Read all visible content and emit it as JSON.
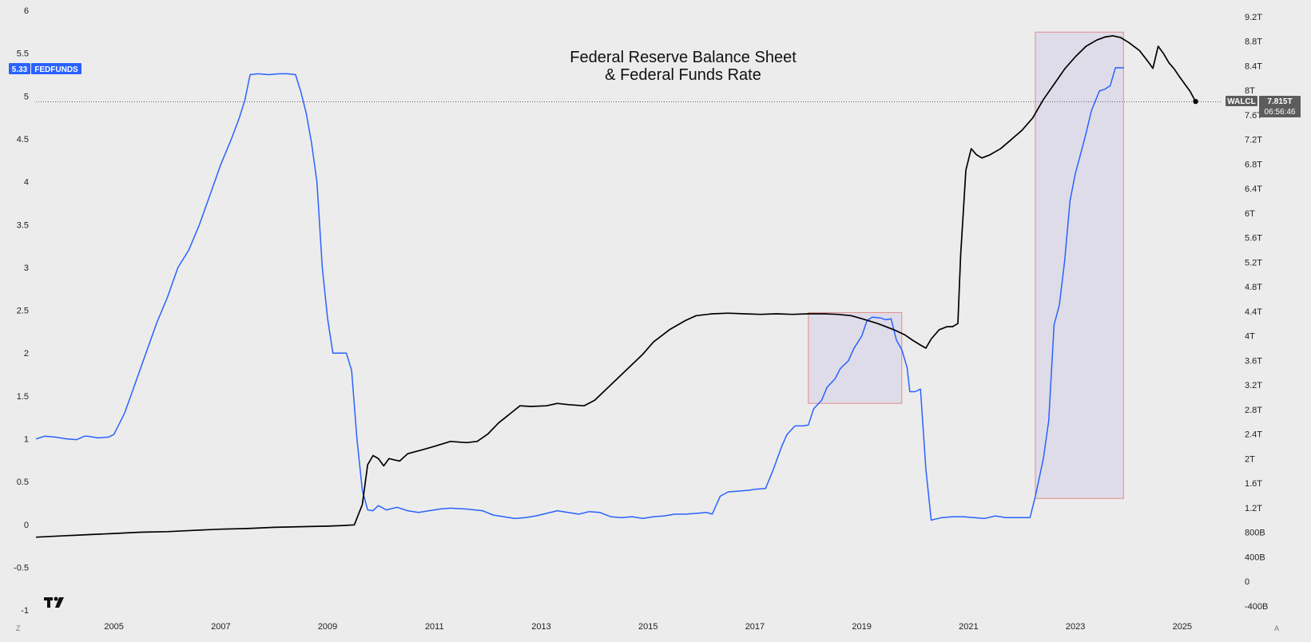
{
  "chart_data": {
    "type": "line",
    "title_line1": "Federal Reserve Balance Sheet",
    "title_line2": "& Federal Funds Rate",
    "x_ticks": [
      "2005",
      "2007",
      "2009",
      "2011",
      "2013",
      "2015",
      "2017",
      "2019",
      "2021",
      "2023",
      "2025"
    ],
    "x_range": [
      2003.54,
      2025.9
    ],
    "left_axis": {
      "ticks": [
        "6",
        "5.5",
        "5",
        "4.5",
        "4",
        "3.5",
        "3",
        "2.5",
        "2",
        "1.5",
        "1",
        "0.5",
        "0",
        "-0.5",
        "-1"
      ],
      "range": [
        -1,
        6
      ]
    },
    "right_axis": {
      "ticks": [
        "9.2T",
        "8.8T",
        "8.4T",
        "8T",
        "7.6T",
        "7.2T",
        "6.8T",
        "6.4T",
        "6T",
        "5.6T",
        "5.2T",
        "4.8T",
        "4.4T",
        "4T",
        "3.6T",
        "3.2T",
        "2.8T",
        "2.4T",
        "2T",
        "1.6T",
        "1.2T",
        "800B",
        "400B",
        "0",
        "-400B"
      ],
      "tick_values_T": [
        9.2,
        8.8,
        8.4,
        8.0,
        7.6,
        7.2,
        6.8,
        6.4,
        6.0,
        5.6,
        5.2,
        4.8,
        4.4,
        4.0,
        3.6,
        3.2,
        2.8,
        2.4,
        2.0,
        1.6,
        1.2,
        0.8,
        0.4,
        0,
        -0.4
      ],
      "range_T": [
        -0.4,
        9.2
      ]
    },
    "series": [
      {
        "name": "FEDFUNDS",
        "axis": "left",
        "color": "#2962ff",
        "last_value_label": "5.33",
        "points": [
          [
            2003.55,
            1.0
          ],
          [
            2003.7,
            1.03
          ],
          [
            2003.9,
            1.02
          ],
          [
            2004.1,
            1.0
          ],
          [
            2004.3,
            0.99
          ],
          [
            2004.45,
            1.03
          ],
          [
            2004.5,
            1.03
          ],
          [
            2004.7,
            1.01
          ],
          [
            2004.9,
            1.02
          ],
          [
            2005.0,
            1.05
          ],
          [
            2005.2,
            1.3
          ],
          [
            2005.4,
            1.65
          ],
          [
            2005.6,
            2.0
          ],
          [
            2005.8,
            2.35
          ],
          [
            2006.0,
            2.65
          ],
          [
            2006.2,
            3.0
          ],
          [
            2006.4,
            3.2
          ],
          [
            2006.6,
            3.5
          ],
          [
            2006.8,
            3.85
          ],
          [
            2007.0,
            4.2
          ],
          [
            2007.2,
            4.5
          ],
          [
            2007.35,
            4.75
          ],
          [
            2007.45,
            4.95
          ],
          [
            2007.55,
            5.25
          ],
          [
            2007.7,
            5.26
          ],
          [
            2007.9,
            5.25
          ],
          [
            2008.1,
            5.26
          ],
          [
            2008.25,
            5.26
          ],
          [
            2008.4,
            5.25
          ],
          [
            2008.5,
            5.05
          ],
          [
            2008.6,
            4.8
          ],
          [
            2008.7,
            4.45
          ],
          [
            2008.8,
            4.0
          ],
          [
            2008.9,
            3.0
          ],
          [
            2009.0,
            2.4
          ],
          [
            2009.1,
            2.0
          ],
          [
            2009.2,
            2.0
          ],
          [
            2009.35,
            2.0
          ],
          [
            2009.45,
            1.8
          ],
          [
            2009.55,
            1.0
          ],
          [
            2009.65,
            0.4
          ],
          [
            2009.75,
            0.17
          ],
          [
            2009.85,
            0.16
          ],
          [
            2009.95,
            0.22
          ],
          [
            2010.1,
            0.17
          ],
          [
            2010.3,
            0.2
          ],
          [
            2010.5,
            0.16
          ],
          [
            2010.7,
            0.14
          ],
          [
            2010.9,
            0.16
          ],
          [
            2011.1,
            0.18
          ],
          [
            2011.3,
            0.19
          ],
          [
            2011.6,
            0.18
          ],
          [
            2011.9,
            0.16
          ],
          [
            2012.1,
            0.11
          ],
          [
            2012.3,
            0.09
          ],
          [
            2012.5,
            0.07
          ],
          [
            2012.7,
            0.08
          ],
          [
            2012.9,
            0.1
          ],
          [
            2013.1,
            0.13
          ],
          [
            2013.3,
            0.16
          ],
          [
            2013.5,
            0.14
          ],
          [
            2013.7,
            0.12
          ],
          [
            2013.9,
            0.15
          ],
          [
            2014.1,
            0.14
          ],
          [
            2014.3,
            0.09
          ],
          [
            2014.5,
            0.08
          ],
          [
            2014.7,
            0.09
          ],
          [
            2014.9,
            0.07
          ],
          [
            2015.1,
            0.09
          ],
          [
            2015.3,
            0.1
          ],
          [
            2015.5,
            0.12
          ],
          [
            2015.7,
            0.12
          ],
          [
            2015.9,
            0.13
          ],
          [
            2016.1,
            0.14
          ],
          [
            2016.2,
            0.12
          ],
          [
            2016.35,
            0.33
          ],
          [
            2016.5,
            0.38
          ],
          [
            2016.7,
            0.39
          ],
          [
            2016.9,
            0.4
          ],
          [
            2017.0,
            0.41
          ],
          [
            2017.2,
            0.42
          ],
          [
            2017.35,
            0.65
          ],
          [
            2017.5,
            0.91
          ],
          [
            2017.6,
            1.05
          ],
          [
            2017.75,
            1.15
          ],
          [
            2017.9,
            1.15
          ],
          [
            2018.0,
            1.16
          ],
          [
            2018.1,
            1.35
          ],
          [
            2018.25,
            1.45
          ],
          [
            2018.35,
            1.6
          ],
          [
            2018.5,
            1.7
          ],
          [
            2018.6,
            1.82
          ],
          [
            2018.75,
            1.91
          ],
          [
            2018.85,
            2.05
          ],
          [
            2019.0,
            2.2
          ],
          [
            2019.1,
            2.38
          ],
          [
            2019.2,
            2.42
          ],
          [
            2019.35,
            2.41
          ],
          [
            2019.45,
            2.39
          ],
          [
            2019.55,
            2.4
          ],
          [
            2019.65,
            2.15
          ],
          [
            2019.75,
            2.04
          ],
          [
            2019.85,
            1.83
          ],
          [
            2019.9,
            1.55
          ],
          [
            2020.0,
            1.55
          ],
          [
            2020.1,
            1.58
          ],
          [
            2020.2,
            0.65
          ],
          [
            2020.3,
            0.05
          ],
          [
            2020.5,
            0.08
          ],
          [
            2020.7,
            0.09
          ],
          [
            2020.9,
            0.09
          ],
          [
            2021.1,
            0.08
          ],
          [
            2021.3,
            0.07
          ],
          [
            2021.5,
            0.1
          ],
          [
            2021.7,
            0.08
          ],
          [
            2021.9,
            0.08
          ],
          [
            2022.0,
            0.08
          ],
          [
            2022.15,
            0.08
          ],
          [
            2022.25,
            0.33
          ],
          [
            2022.4,
            0.77
          ],
          [
            2022.5,
            1.21
          ],
          [
            2022.6,
            2.33
          ],
          [
            2022.7,
            2.56
          ],
          [
            2022.8,
            3.08
          ],
          [
            2022.9,
            3.78
          ],
          [
            2023.0,
            4.1
          ],
          [
            2023.1,
            4.33
          ],
          [
            2023.2,
            4.57
          ],
          [
            2023.3,
            4.83
          ],
          [
            2023.45,
            5.06
          ],
          [
            2023.55,
            5.08
          ],
          [
            2023.65,
            5.12
          ],
          [
            2023.75,
            5.33
          ],
          [
            2023.9,
            5.33
          ]
        ]
      },
      {
        "name": "WALCL",
        "axis": "right",
        "color": "#000000",
        "last_value_label": "7.815T",
        "countdown": "06:56:46",
        "points": [
          [
            2003.55,
            0.72
          ],
          [
            2004.0,
            0.74
          ],
          [
            2004.5,
            0.76
          ],
          [
            2005.0,
            0.78
          ],
          [
            2005.5,
            0.8
          ],
          [
            2006.0,
            0.81
          ],
          [
            2006.5,
            0.83
          ],
          [
            2007.0,
            0.85
          ],
          [
            2007.5,
            0.86
          ],
          [
            2008.0,
            0.88
          ],
          [
            2008.5,
            0.89
          ],
          [
            2009.0,
            0.9
          ],
          [
            2009.3,
            0.91
          ],
          [
            2009.5,
            0.92
          ],
          [
            2009.65,
            1.25
          ],
          [
            2009.75,
            1.9
          ],
          [
            2009.85,
            2.05
          ],
          [
            2009.95,
            2.0
          ],
          [
            2010.05,
            1.88
          ],
          [
            2010.15,
            2.0
          ],
          [
            2010.25,
            1.98
          ],
          [
            2010.35,
            1.96
          ],
          [
            2010.5,
            2.08
          ],
          [
            2010.8,
            2.15
          ],
          [
            2011.0,
            2.2
          ],
          [
            2011.3,
            2.28
          ],
          [
            2011.6,
            2.26
          ],
          [
            2011.8,
            2.28
          ],
          [
            2012.0,
            2.4
          ],
          [
            2012.2,
            2.58
          ],
          [
            2012.4,
            2.72
          ],
          [
            2012.6,
            2.86
          ],
          [
            2012.8,
            2.85
          ],
          [
            2013.1,
            2.86
          ],
          [
            2013.3,
            2.9
          ],
          [
            2013.5,
            2.88
          ],
          [
            2013.8,
            2.86
          ],
          [
            2014.0,
            2.95
          ],
          [
            2014.3,
            3.2
          ],
          [
            2014.6,
            3.45
          ],
          [
            2014.9,
            3.7
          ],
          [
            2015.1,
            3.9
          ],
          [
            2015.4,
            4.1
          ],
          [
            2015.7,
            4.25
          ],
          [
            2015.9,
            4.33
          ],
          [
            2016.2,
            4.36
          ],
          [
            2016.5,
            4.37
          ],
          [
            2016.8,
            4.36
          ],
          [
            2017.1,
            4.35
          ],
          [
            2017.4,
            4.36
          ],
          [
            2017.7,
            4.35
          ],
          [
            2018.0,
            4.36
          ],
          [
            2018.3,
            4.36
          ],
          [
            2018.55,
            4.35
          ],
          [
            2018.8,
            4.33
          ],
          [
            2019.0,
            4.28
          ],
          [
            2019.3,
            4.2
          ],
          [
            2019.6,
            4.1
          ],
          [
            2019.8,
            4.02
          ],
          [
            2019.95,
            3.93
          ],
          [
            2020.1,
            3.85
          ],
          [
            2020.2,
            3.8
          ],
          [
            2020.3,
            3.95
          ],
          [
            2020.45,
            4.1
          ],
          [
            2020.6,
            4.15
          ],
          [
            2020.7,
            4.15
          ],
          [
            2020.8,
            4.2
          ],
          [
            2020.85,
            5.3
          ],
          [
            2020.95,
            6.7
          ],
          [
            2021.05,
            7.05
          ],
          [
            2021.15,
            6.95
          ],
          [
            2021.25,
            6.9
          ],
          [
            2021.4,
            6.95
          ],
          [
            2021.6,
            7.05
          ],
          [
            2021.8,
            7.2
          ],
          [
            2022.0,
            7.35
          ],
          [
            2022.2,
            7.55
          ],
          [
            2022.4,
            7.85
          ],
          [
            2022.6,
            8.1
          ],
          [
            2022.8,
            8.35
          ],
          [
            2023.0,
            8.55
          ],
          [
            2023.2,
            8.72
          ],
          [
            2023.4,
            8.82
          ],
          [
            2023.55,
            8.87
          ],
          [
            2023.7,
            8.89
          ],
          [
            2023.85,
            8.86
          ],
          [
            2024.0,
            8.78
          ],
          [
            2024.2,
            8.65
          ],
          [
            2024.35,
            8.48
          ],
          [
            2024.45,
            8.36
          ],
          [
            2024.55,
            8.72
          ],
          [
            2024.65,
            8.6
          ],
          [
            2024.75,
            8.45
          ],
          [
            2024.85,
            8.35
          ],
          [
            2024.95,
            8.22
          ],
          [
            2025.05,
            8.1
          ],
          [
            2025.15,
            7.98
          ],
          [
            2025.25,
            7.82
          ]
        ]
      }
    ],
    "x_axis_note": "fedfunds x uses decimal years; walcl x is mapped on the same shared time scale"
  },
  "overlays": {
    "boxes": [
      {
        "name": "qt-period-1",
        "x_start": 2018.0,
        "x_end": 2019.75,
        "y_top_T": 4.38,
        "y_bottom_T": 2.9,
        "fill": "#9c8fd8",
        "stroke": "#e38b8b"
      },
      {
        "name": "qt-period-2",
        "x_start": 2022.25,
        "x_end": 2023.9,
        "y_top_T": 8.95,
        "y_bottom_T": 1.35,
        "fill": "#9c8fd8",
        "stroke": "#e38b8b"
      }
    ]
  },
  "ui": {
    "logo_text": "TV",
    "corner_left": "Z",
    "corner_right": "A",
    "walcl_label": "WALCL",
    "fedfunds_label": "FEDFUNDS"
  }
}
